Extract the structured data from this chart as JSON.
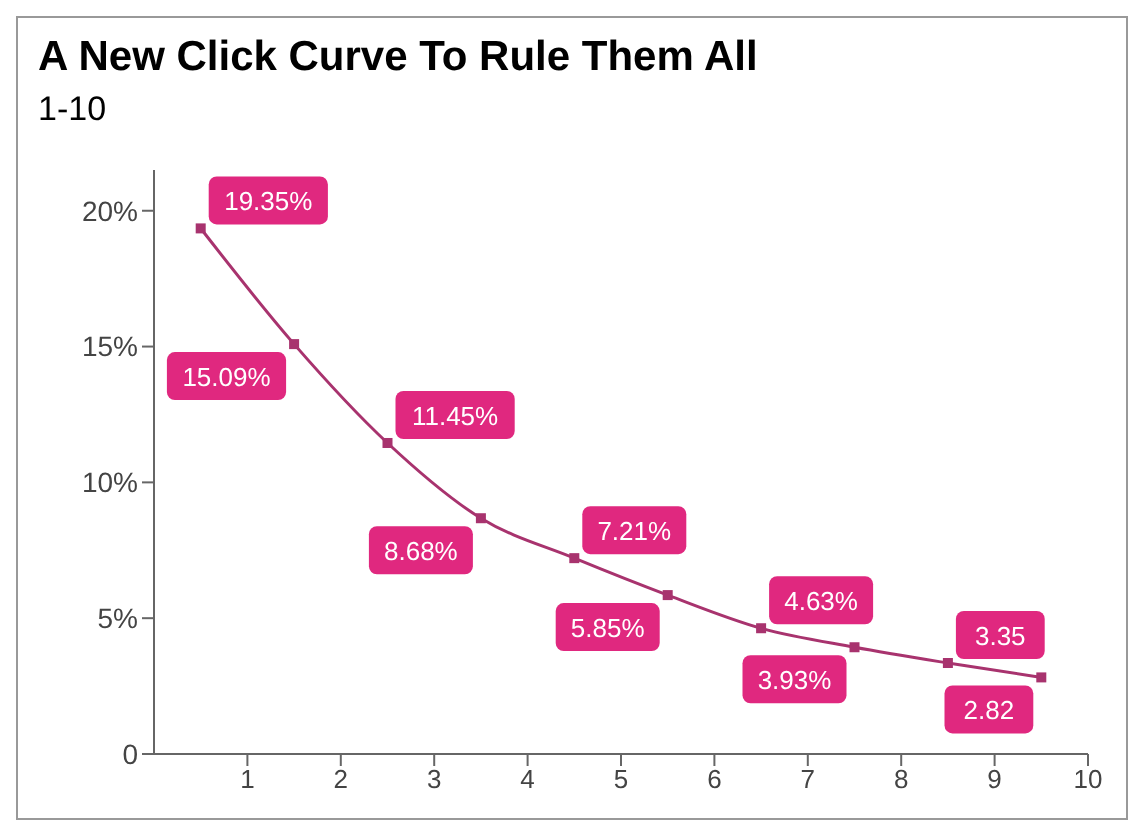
{
  "chart_data": {
    "type": "line",
    "title": "A New Click Curve To Rule Them All",
    "subtitle": "1-10",
    "x": [
      0.5,
      1.5,
      2.5,
      3.5,
      4.5,
      5.5,
      6.5,
      7.5,
      8.5,
      9.5
    ],
    "series": [
      {
        "color": "#a8336e",
        "values": [
          19.35,
          15.09,
          11.45,
          8.68,
          7.21,
          5.85,
          4.63,
          3.93,
          3.35,
          2.82
        ],
        "value_labels": [
          "19.35%",
          "15.09%",
          "11.45%",
          "8.68%",
          "7.21%",
          "5.85%",
          "4.63%",
          "3.93%",
          "3.35",
          "2.82"
        ]
      }
    ],
    "xlim": [
      0,
      10
    ],
    "xticks": [
      1,
      2,
      3,
      4,
      5,
      6,
      7,
      8,
      9,
      10
    ],
    "ylim": [
      0,
      21.5
    ],
    "yticks": [
      {
        "value": 0,
        "label": "0"
      },
      {
        "value": 5,
        "label": "5%"
      },
      {
        "value": 10,
        "label": "10%"
      },
      {
        "value": 15,
        "label": "15%"
      },
      {
        "value": 20,
        "label": "20%"
      }
    ],
    "marker": "square",
    "line_style": "solid",
    "grid": false,
    "legend": false
  }
}
